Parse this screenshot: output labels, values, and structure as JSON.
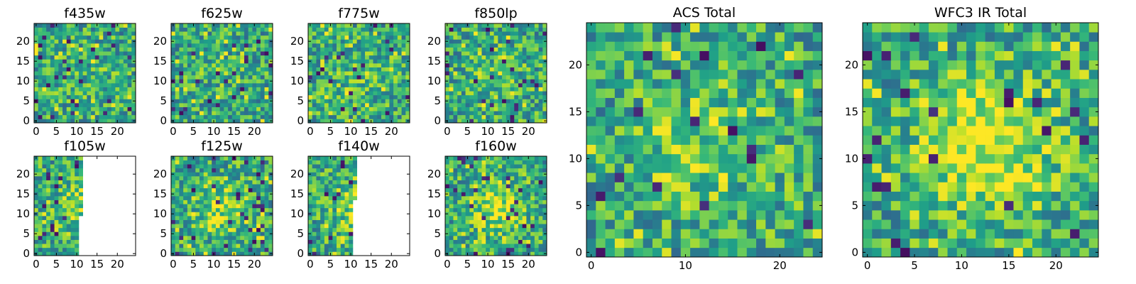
{
  "chart_data": [
    {
      "type": "heatmap",
      "title": "f435w",
      "xticks": [
        "0",
        "5",
        "10",
        "15",
        "20"
      ],
      "yticks": [
        "0",
        "5",
        "10",
        "15",
        "20"
      ],
      "xlim": [
        -0.5,
        24.5
      ],
      "ylim": [
        -0.5,
        24.5
      ],
      "grid": false,
      "pixel_mask": "full",
      "colormap": "viridis",
      "seed": 11,
      "blob": 0.1
    },
    {
      "type": "heatmap",
      "title": "f625w",
      "xticks": [
        "0",
        "5",
        "10",
        "15",
        "20"
      ],
      "yticks": [
        "0",
        "5",
        "10",
        "15",
        "20"
      ],
      "xlim": [
        -0.5,
        24.5
      ],
      "ylim": [
        -0.5,
        24.5
      ],
      "grid": false,
      "pixel_mask": "full",
      "colormap": "viridis",
      "seed": 23,
      "blob": 0.1
    },
    {
      "type": "heatmap",
      "title": "f775w",
      "xticks": [
        "0",
        "5",
        "10",
        "15",
        "20"
      ],
      "yticks": [
        "0",
        "5",
        "10",
        "15",
        "20"
      ],
      "xlim": [
        -0.5,
        24.5
      ],
      "ylim": [
        -0.5,
        24.5
      ],
      "grid": false,
      "pixel_mask": "full",
      "colormap": "viridis",
      "seed": 37,
      "blob": 0.2
    },
    {
      "type": "heatmap",
      "title": "f850lp",
      "xticks": [
        "0",
        "5",
        "10",
        "15",
        "20"
      ],
      "yticks": [
        "0",
        "5",
        "10",
        "15",
        "20"
      ],
      "xlim": [
        -0.5,
        24.5
      ],
      "ylim": [
        -0.5,
        24.5
      ],
      "grid": false,
      "pixel_mask": "full",
      "colormap": "viridis",
      "seed": 41,
      "blob": 0.2
    },
    {
      "type": "heatmap",
      "title": "f105w",
      "xticks": [
        "0",
        "5",
        "10",
        "15",
        "20"
      ],
      "yticks": [
        "0",
        "5",
        "10",
        "15",
        "20"
      ],
      "xlim": [
        -0.5,
        24.5
      ],
      "ylim": [
        -0.5,
        24.5
      ],
      "grid": false,
      "pixel_mask": "left-partial",
      "mask_columns": {
        "upper": 11,
        "lower": 10,
        "split_row": 10
      },
      "colormap": "viridis",
      "seed": 53,
      "blob": 0.4
    },
    {
      "type": "heatmap",
      "title": "f125w",
      "xticks": [
        "0",
        "5",
        "10",
        "15",
        "20"
      ],
      "yticks": [
        "0",
        "5",
        "10",
        "15",
        "20"
      ],
      "xlim": [
        -0.5,
        24.5
      ],
      "ylim": [
        -0.5,
        24.5
      ],
      "grid": false,
      "pixel_mask": "full",
      "colormap": "viridis",
      "seed": 67,
      "blob": 0.4
    },
    {
      "type": "heatmap",
      "title": "f140w",
      "xticks": [
        "0",
        "5",
        "10",
        "15",
        "20"
      ],
      "yticks": [
        "0",
        "5",
        "10",
        "15",
        "20"
      ],
      "xlim": [
        -0.5,
        24.5
      ],
      "ylim": [
        -0.5,
        24.5
      ],
      "grid": false,
      "pixel_mask": "left-partial",
      "mask_columns": {
        "upper": 11,
        "lower": 10,
        "split_row": 14
      },
      "colormap": "viridis",
      "seed": 79,
      "blob": 0.4
    },
    {
      "type": "heatmap",
      "title": "f160w",
      "xticks": [
        "0",
        "5",
        "10",
        "15",
        "20"
      ],
      "yticks": [
        "0",
        "5",
        "10",
        "15",
        "20"
      ],
      "xlim": [
        -0.5,
        24.5
      ],
      "ylim": [
        -0.5,
        24.5
      ],
      "grid": false,
      "pixel_mask": "full",
      "colormap": "viridis",
      "seed": 83,
      "blob": 0.5
    },
    {
      "type": "heatmap",
      "title": "ACS Total",
      "xticks": [
        "0",
        "10",
        "20"
      ],
      "yticks": [
        "0",
        "5",
        "10",
        "15",
        "20"
      ],
      "xlim": [
        -0.5,
        24.5
      ],
      "ylim": [
        -0.5,
        24.5
      ],
      "grid": false,
      "pixel_mask": "full",
      "colormap": "viridis",
      "seed": 97,
      "blob": 0.3
    },
    {
      "type": "heatmap",
      "title": "WFC3 IR Total",
      "xticks": [
        "0",
        "5",
        "10",
        "15",
        "20"
      ],
      "yticks": [
        "0",
        "5",
        "10",
        "15",
        "20"
      ],
      "xlim": [
        -0.5,
        24.5
      ],
      "ylim": [
        -0.5,
        24.5
      ],
      "grid": false,
      "pixel_mask": "full",
      "colormap": "viridis",
      "seed": 101,
      "blob": 0.7
    }
  ]
}
